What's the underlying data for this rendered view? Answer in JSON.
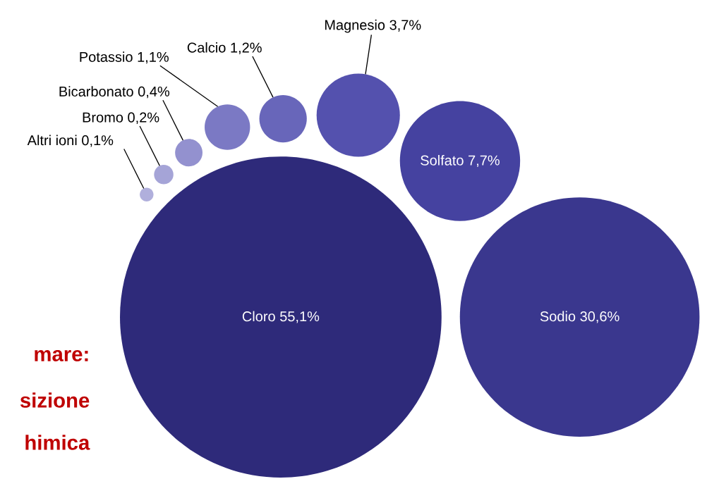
{
  "chart_data": {
    "type": "other",
    "categories": [
      "Cloro",
      "Sodio",
      "Solfato",
      "Magnesio",
      "Calcio",
      "Potassio",
      "Bicarbonato",
      "Bromo",
      "Altri ioni"
    ],
    "values": [
      55.1,
      30.6,
      7.7,
      3.7,
      1.2,
      1.1,
      0.4,
      0.2,
      0.1
    ],
    "value_labels": [
      "55,1%",
      "30,6%",
      "7,7%",
      "3,7%",
      "1,2%",
      "1,1%",
      "0,4%",
      "0,2%",
      "0,1%"
    ],
    "colors": [
      "#2e2a7a",
      "#3a378e",
      "#4542a0",
      "#5451ae",
      "#6866ba",
      "#7b79c4",
      "#9391cf",
      "#a5a4d7",
      "#b0afdc"
    ],
    "annotations": [
      "mare:",
      "sizione",
      "himica"
    ]
  }
}
